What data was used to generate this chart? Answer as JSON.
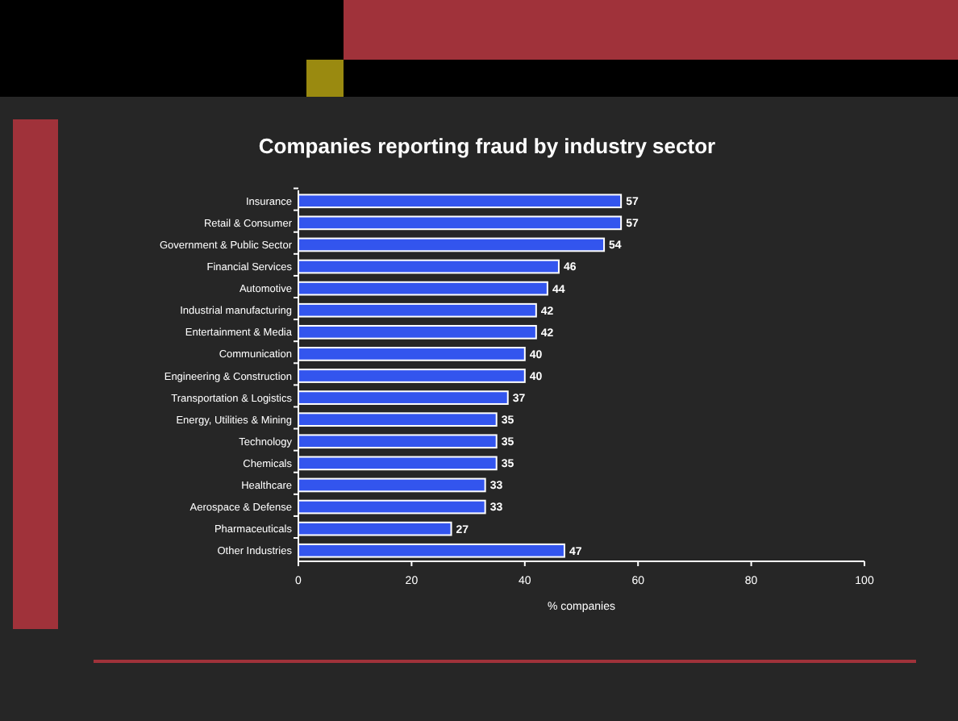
{
  "chart_data": {
    "type": "bar",
    "orientation": "horizontal",
    "title": "Companies reporting fraud by industry sector",
    "xlabel": "% companies",
    "categories": [
      "Insurance",
      "Retail & Consumer",
      "Government & Public Sector",
      "Financial Services",
      "Automotive",
      "Industrial manufacturing",
      "Entertainment & Media",
      "Communication",
      "Engineering & Construction",
      "Transportation & Logistics",
      "Energy, Utilities & Mining",
      "Technology",
      "Chemicals",
      "Healthcare",
      "Aerospace & Defense",
      "Pharmaceuticals",
      "Other Industries"
    ],
    "values": [
      57,
      57,
      54,
      46,
      44,
      42,
      42,
      40,
      40,
      37,
      35,
      35,
      35,
      33,
      33,
      27,
      47
    ],
    "color": "#3355ee",
    "xlim": [
      0,
      100
    ],
    "xticks": [
      0,
      20,
      40,
      60,
      80,
      100
    ],
    "data_labels": true,
    "grid": false
  }
}
